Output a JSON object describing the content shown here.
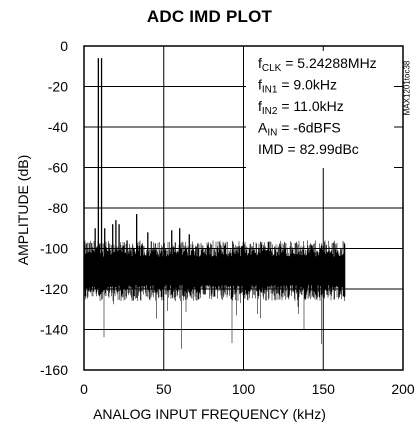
{
  "chart_data": {
    "type": "line",
    "title": "ADC IMD PLOT",
    "xlabel": "ANALOG INPUT FREQUENCY (kHz)",
    "ylabel": "AMPLITUDE (dB)",
    "xlim": [
      0,
      200
    ],
    "ylim": [
      -160,
      0
    ],
    "xticks": [
      0,
      50,
      100,
      150,
      200
    ],
    "yticks": [
      0,
      -20,
      -40,
      -60,
      -80,
      -100,
      -120,
      -140,
      -160
    ],
    "grid": true,
    "part_number": "MAX1201toc38",
    "noise_floor": {
      "x_range": [
        0,
        163.8
      ],
      "typical_range": [
        -118,
        -100
      ]
    },
    "series": [
      {
        "peaks": [
          {
            "x": 9.0,
            "y": -6
          },
          {
            "x": 11.0,
            "y": -6
          },
          {
            "x": 7.0,
            "y": -90
          },
          {
            "x": 13.0,
            "y": -90
          },
          {
            "x": 18.0,
            "y": -88
          },
          {
            "x": 20.0,
            "y": -86
          },
          {
            "x": 22.0,
            "y": -88
          },
          {
            "x": 27.0,
            "y": -96
          },
          {
            "x": 33.0,
            "y": -83
          },
          {
            "x": 40.0,
            "y": -92
          },
          {
            "x": 55.0,
            "y": -91
          },
          {
            "x": 60.0,
            "y": -90
          },
          {
            "x": 66.0,
            "y": -93
          }
        ]
      }
    ],
    "annotations": [
      {
        "base": "f",
        "sub": "CLK",
        "rest": " = 5.24288MHz"
      },
      {
        "base": "f",
        "sub": "IN1",
        "rest": " = 9.0kHz"
      },
      {
        "base": "f",
        "sub": "IN2",
        "rest": " = 11.0kHz"
      },
      {
        "base": "A",
        "sub": "IN",
        "rest": " = -6dBFS"
      },
      {
        "base": "IMD = 82.99dBc",
        "sub": "",
        "rest": ""
      }
    ]
  }
}
